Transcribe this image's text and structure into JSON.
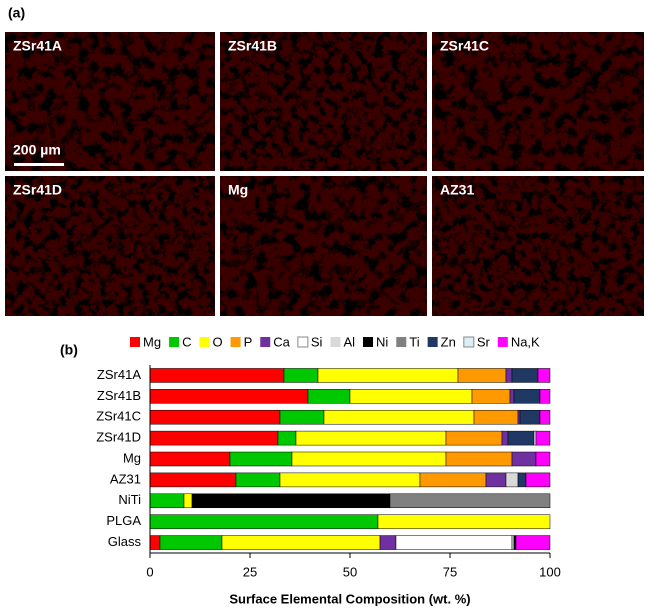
{
  "panel_a": {
    "label": "(a)",
    "scale_bar": "200 µm",
    "images": [
      {
        "label": "ZSr41A"
      },
      {
        "label": "ZSr41B"
      },
      {
        "label": "ZSr41C"
      },
      {
        "label": "ZSr41D"
      },
      {
        "label": "Mg"
      },
      {
        "label": "AZ31"
      }
    ]
  },
  "chart_data": {
    "type": "stacked-bar-horizontal",
    "panel_label": "(b)",
    "xlabel": "Surface Elemental Composition (wt. %)",
    "categories": [
      "ZSr41A",
      "ZSr41B",
      "ZSr41C",
      "ZSr41D",
      "Mg",
      "AZ31",
      "NiTi",
      "PLGA",
      "Glass"
    ],
    "series": [
      {
        "name": "Mg",
        "color": "#ff0000",
        "values": [
          33.5,
          39.5,
          32.5,
          32,
          20,
          21.5,
          null,
          null,
          2.5
        ]
      },
      {
        "name": "C",
        "color": "#00c800",
        "values": [
          8.5,
          10.5,
          11,
          4.5,
          15.5,
          11,
          8.5,
          57,
          15.5
        ]
      },
      {
        "name": "O",
        "color": "#ffff00",
        "values": [
          35,
          30.5,
          37.5,
          37.5,
          38.5,
          35,
          2,
          43,
          39.5
        ]
      },
      {
        "name": "P",
        "color": "#ff9900",
        "values": [
          12,
          9.5,
          11,
          14,
          16.5,
          16.5,
          null,
          null,
          null
        ]
      },
      {
        "name": "Ca",
        "color": "#7030a0",
        "values": [
          1.5,
          1,
          0.5,
          1.5,
          6,
          5,
          null,
          null,
          4
        ]
      },
      {
        "name": "Si",
        "color": "#ffffff",
        "values": [
          null,
          null,
          null,
          null,
          null,
          null,
          null,
          null,
          29
        ]
      },
      {
        "name": "Al",
        "color": "#d9d9d9",
        "values": [
          null,
          null,
          null,
          null,
          null,
          3,
          null,
          null,
          0.5
        ]
      },
      {
        "name": "Ni",
        "color": "#000000",
        "values": [
          null,
          null,
          null,
          null,
          null,
          null,
          49.5,
          null,
          0.5
        ]
      },
      {
        "name": "Ti",
        "color": "#808080",
        "values": [
          null,
          null,
          null,
          null,
          null,
          null,
          40,
          null,
          null
        ]
      },
      {
        "name": "Zn",
        "color": "#1f3864",
        "values": [
          6.5,
          6.5,
          5,
          6.5,
          null,
          2,
          null,
          null,
          null
        ]
      },
      {
        "name": "Sr",
        "color": "#dbeef4",
        "values": [
          null,
          null,
          null,
          0.5,
          null,
          null,
          null,
          null,
          null
        ]
      },
      {
        "name": "Na,K",
        "color": "#ff00ff",
        "values": [
          3,
          2.5,
          2.5,
          3.5,
          3.5,
          6,
          null,
          null,
          8.5
        ]
      }
    ],
    "xlim": [
      0,
      100
    ],
    "xticks": [
      0,
      25,
      50,
      75,
      100
    ]
  }
}
